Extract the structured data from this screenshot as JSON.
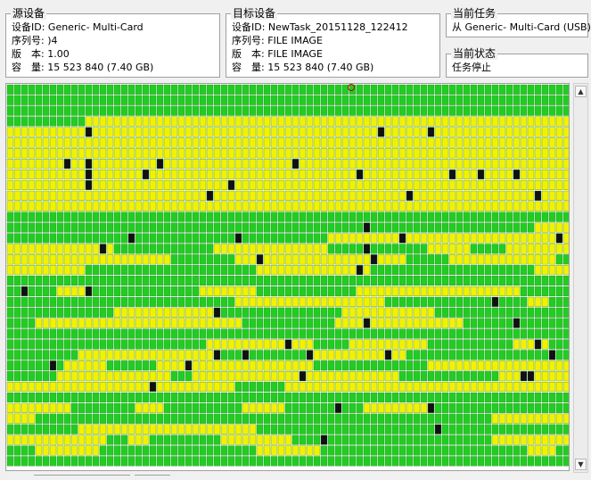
{
  "source": {
    "title": "源设备",
    "fields": [
      {
        "label": "设备ID:",
        "value": "Generic- Multi-Card"
      },
      {
        "label": "序列号:",
        "value": ")4"
      },
      {
        "label": "版　本:",
        "value": "1.00"
      },
      {
        "label": "容　量:",
        "value": "15 523 840 (7.40 GB)"
      }
    ]
  },
  "target": {
    "title": "目标设备",
    "fields": [
      {
        "label": "设备ID:",
        "value": "NewTask_20151128_122412"
      },
      {
        "label": "序列号:",
        "value": "FILE IMAGE"
      },
      {
        "label": "版　本:",
        "value": "FILE IMAGE"
      },
      {
        "label": "容　量:",
        "value": "15 523 840 (7.40 GB)"
      }
    ]
  },
  "current_task": {
    "title": "当前任务",
    "value": "从 Generic- Multi-Card (USB)"
  },
  "current_status": {
    "title": "当前状态",
    "value": "任务停止"
  },
  "sector_map": {
    "legend_colors": {
      "done": "#22cc22",
      "pending": "#f2f200",
      "bad": "#111111"
    }
  }
}
